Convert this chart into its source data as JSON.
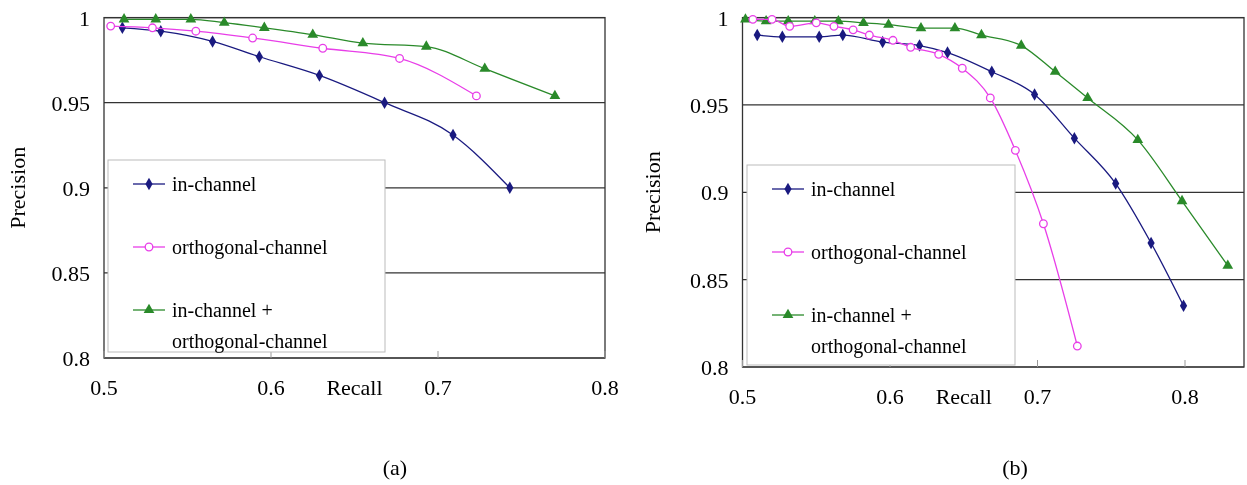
{
  "chart_data": [
    {
      "type": "line",
      "xlabel": "Recall",
      "ylabel": "Precision",
      "xlim": [
        0.5,
        0.8
      ],
      "xticks": [
        0.5,
        0.6,
        0.7,
        0.8
      ],
      "ylim": [
        0.8,
        1
      ],
      "yticks": [
        0.8,
        0.85,
        0.9,
        0.95,
        1
      ],
      "grid": "y",
      "legend": "bottom left",
      "annotations": [
        "(a)"
      ],
      "series": [
        {
          "name": "in-channel",
          "color": "#1a1a80",
          "marker": "diamond",
          "x": [
            0.511,
            0.534,
            0.565,
            0.593,
            0.629,
            0.668,
            0.709,
            0.743
          ],
          "values": [
            0.994,
            0.992,
            0.986,
            0.977,
            0.966,
            0.95,
            0.931,
            0.9
          ]
        },
        {
          "name": "orthogonal-channel",
          "color": "#e83ee8",
          "marker": "circle",
          "x": [
            0.504,
            0.529,
            0.555,
            0.589,
            0.631,
            0.677,
            0.723
          ],
          "values": [
            0.995,
            0.994,
            0.992,
            0.988,
            0.982,
            0.976,
            0.954
          ]
        },
        {
          "name": "in-channel + orthogonal-channel",
          "color": "#2a8a2a",
          "marker": "triangle",
          "x": [
            0.512,
            0.531,
            0.552,
            0.572,
            0.596,
            0.625,
            0.655,
            0.693,
            0.728,
            0.77
          ],
          "values": [
            0.999,
            0.999,
            0.999,
            0.997,
            0.994,
            0.99,
            0.985,
            0.983,
            0.97,
            0.954
          ]
        }
      ]
    },
    {
      "type": "line",
      "xlabel": "Recall",
      "ylabel": "Precision",
      "xlim": [
        0.5,
        0.84
      ],
      "xticks": [
        0.5,
        0.6,
        0.7,
        0.8
      ],
      "ylim": [
        0.8,
        1
      ],
      "yticks": [
        0.8,
        0.85,
        0.9,
        0.95,
        1
      ],
      "grid": "y",
      "legend": "bottom left",
      "annotations": [
        "(b)"
      ],
      "series": [
        {
          "name": "in-channel",
          "color": "#1a1a80",
          "marker": "diamond",
          "x": [
            0.51,
            0.527,
            0.552,
            0.568,
            0.595,
            0.62,
            0.639,
            0.669,
            0.698,
            0.725,
            0.753,
            0.777,
            0.799
          ],
          "values": [
            0.99,
            0.989,
            0.989,
            0.99,
            0.986,
            0.984,
            0.98,
            0.969,
            0.956,
            0.931,
            0.905,
            0.871,
            0.835
          ]
        },
        {
          "name": "orthogonal-channel",
          "color": "#e83ee8",
          "marker": "circle",
          "x": [
            0.507,
            0.52,
            0.532,
            0.55,
            0.562,
            0.575,
            0.586,
            0.602,
            0.614,
            0.633,
            0.649,
            0.668,
            0.685,
            0.704,
            0.727
          ],
          "values": [
            0.999,
            0.999,
            0.995,
            0.997,
            0.995,
            0.993,
            0.99,
            0.987,
            0.983,
            0.979,
            0.971,
            0.954,
            0.924,
            0.882,
            0.812
          ]
        },
        {
          "name": "in-channel + orthogonal-channel",
          "color": "#2a8a2a",
          "marker": "triangle",
          "x": [
            0.502,
            0.516,
            0.531,
            0.549,
            0.565,
            0.582,
            0.599,
            0.621,
            0.644,
            0.662,
            0.689,
            0.712,
            0.734,
            0.768,
            0.798,
            0.829
          ],
          "values": [
            0.999,
            0.998,
            0.998,
            0.998,
            0.998,
            0.997,
            0.996,
            0.994,
            0.994,
            0.99,
            0.984,
            0.969,
            0.954,
            0.93,
            0.895,
            0.858
          ]
        }
      ]
    }
  ]
}
